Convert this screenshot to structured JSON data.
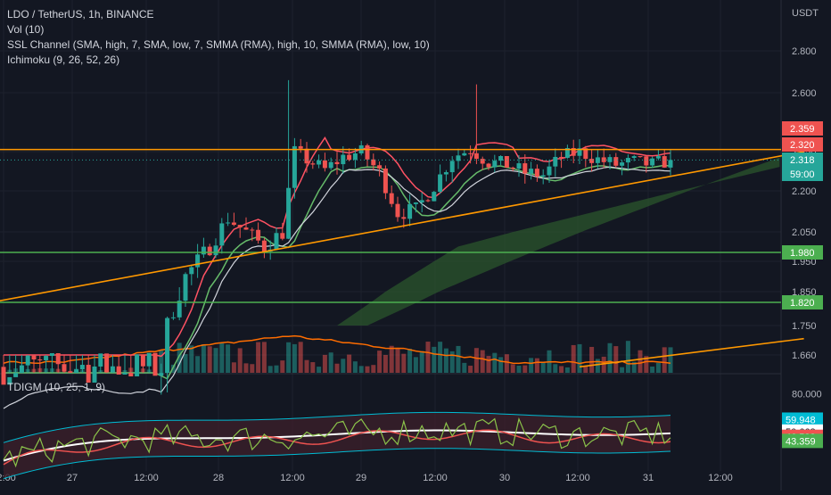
{
  "header": {
    "symbol": "LDO / TetherUS, 1h, BINANCE",
    "currency": "USDT",
    "indicators": [
      "Vol (10)",
      "SSL Channel (SMA, high, 7, SMA, low, 7, SMMA (RMA), high, 10, SMMA (RMA), low, 10)",
      "Ichimoku (9, 26, 52, 26)"
    ],
    "oscillator": "TDIGM (10, 25, 1, 9)"
  },
  "colors": {
    "background": "#131722",
    "grid": "#1e222d",
    "up": "#26a69a",
    "down": "#ef5350",
    "trendline": "#ff9800",
    "support": "#4caf50",
    "cloud": "#2e5d2e"
  },
  "chart_data": [
    {
      "type": "candlestick",
      "title": "LDO / TetherUS, 1h, BINANCE",
      "ylabel": "USDT",
      "x_ticks": [
        "12:00",
        "27",
        "12:00",
        "28",
        "12:00",
        "29",
        "12:00",
        "30",
        "12:00",
        "31",
        "12:00"
      ],
      "y_ticks": [
        2.8,
        2.6,
        2.35,
        2.2,
        2.05,
        1.95,
        1.85,
        1.75,
        1.66
      ],
      "y_tick_labels": [
        "2.800",
        "2.600",
        "2.350",
        "2.200",
        "2.050",
        "1.950",
        "1.850",
        "1.750",
        "1.660"
      ],
      "ylim": [
        1.63,
        2.95
      ],
      "horizontal_levels": [
        {
          "price": 2.359,
          "label": "2.359",
          "color": "#ff9800"
        },
        {
          "price": 1.98,
          "label": "1.980",
          "color": "#4caf50"
        },
        {
          "price": 1.82,
          "label": "1.820",
          "color": "#4caf50"
        }
      ],
      "price_labels": [
        {
          "label": "2.359",
          "color": "#ef5350"
        },
        {
          "label": "2.320",
          "color": "#ef5350"
        },
        {
          "label": "2.318",
          "color": "#26a69a"
        },
        {
          "label": "59:00",
          "color": "#26a69a"
        }
      ],
      "trendlines": [
        {
          "from": [
            -2,
            1.82
          ],
          "to": [
            132,
            2.35
          ]
        },
        {
          "from": [
            95,
            1.64
          ],
          "to": [
            132,
            1.71
          ]
        }
      ],
      "candles_summary": {
        "bars": 111,
        "start_price": 1.64,
        "peak": 2.66,
        "last": 2.318
      }
    },
    {
      "type": "line",
      "title": "TDIGM (10, 25, 1, 9)",
      "y_ticks": [
        80.0
      ],
      "y_tick_labels": [
        "80.000"
      ],
      "ylim": [
        20,
        95
      ],
      "value_labels": [
        {
          "value": 59.948,
          "label": "59.948",
          "color": "#00bcd4"
        },
        {
          "value": 50.668,
          "label": "50.668",
          "color": "#ffffff"
        },
        {
          "value": 46.588,
          "label": "46.588",
          "color": "#ef5350"
        },
        {
          "value": 43.359,
          "label": "43.359",
          "color": "#4caf50"
        }
      ]
    }
  ]
}
